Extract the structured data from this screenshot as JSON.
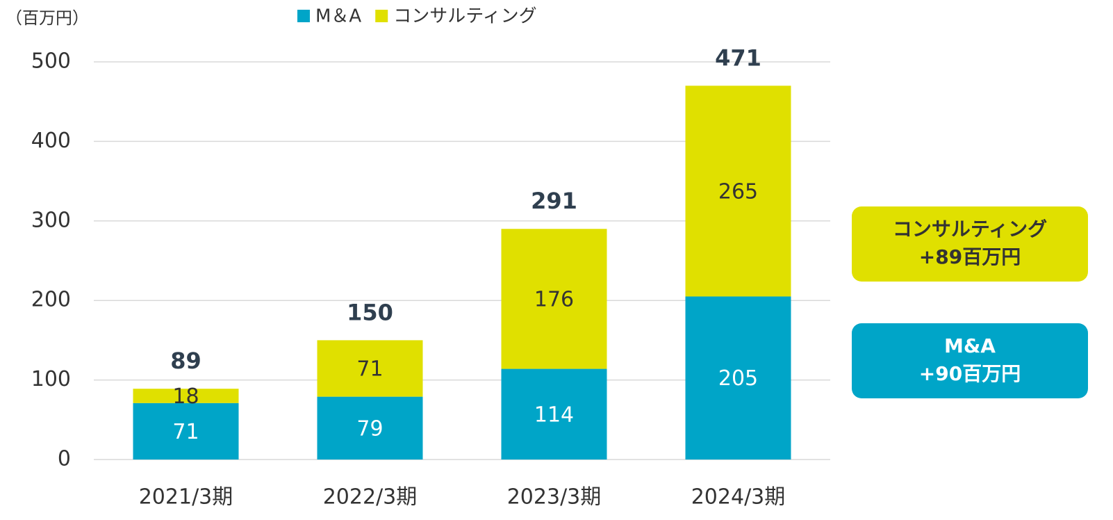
{
  "chart_data": {
    "type": "stacked_bar",
    "y_axis_label": "（百万円）",
    "categories": [
      "2021/3期",
      "2022/3期",
      "2023/3期",
      "2024/3期"
    ],
    "series": [
      {
        "name": "M＆A",
        "color": "#00a5c8",
        "label_color": "#ffffff",
        "values": [
          71,
          79,
          114,
          205
        ]
      },
      {
        "name": "コンサルティング",
        "color": "#e0e000",
        "label_color": "#333333",
        "values": [
          18,
          71,
          176,
          265
        ]
      }
    ],
    "totals": [
      89,
      150,
      291,
      471
    ],
    "ylim": [
      0,
      500
    ],
    "yticks": [
      0,
      100,
      200,
      300,
      400,
      500
    ],
    "grid": true,
    "annotations": [
      {
        "lines": [
          "コンサルティング",
          "+89百万円"
        ],
        "color": "#e0e000",
        "text_color": "#333333"
      },
      {
        "lines": [
          "M&A",
          "+90百万円"
        ],
        "color": "#00a5c8",
        "text_color": "#ffffff"
      }
    ]
  }
}
